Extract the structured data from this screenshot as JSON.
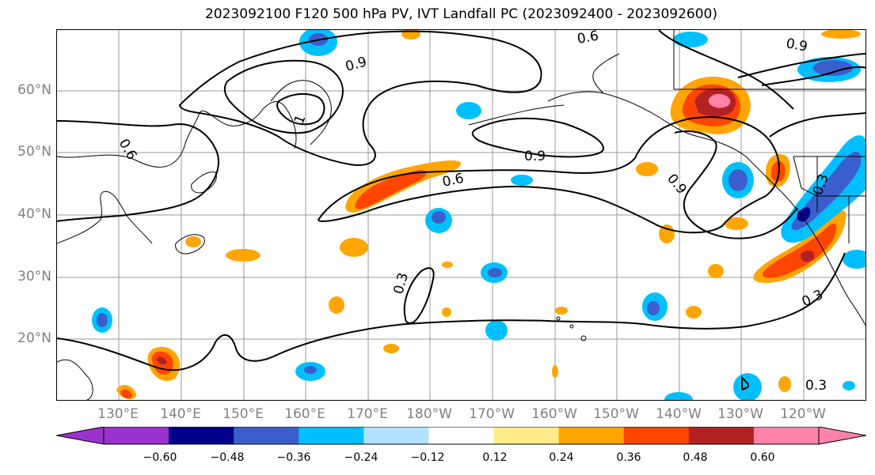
{
  "title": "2023092100 F120 500 hPa PV, IVT Landfall PC (2023092400 - 2023092600)",
  "lat_labels": [
    "60°N",
    "50°N",
    "40°N",
    "30°N",
    "20°N"
  ],
  "lon_labels": [
    "130°E",
    "140°E",
    "150°E",
    "160°E",
    "170°E",
    "180°W",
    "170°W",
    "160°W",
    "150°W",
    "140°W",
    "130°W",
    "120°W"
  ],
  "contour_labels": [
    "0.6",
    "0.9",
    "0.9",
    "0.6",
    "0.9",
    "0.6",
    "0.9",
    "0.3",
    "0.3",
    "0.3",
    "1",
    "0.3"
  ],
  "colorbar": {
    "tick_labels": [
      "−0.60",
      "−0.48",
      "−0.36",
      "−0.24",
      "−0.12",
      "0.12",
      "0.24",
      "0.36",
      "0.48",
      "0.60"
    ],
    "colors": [
      "#9a32cd",
      "#00008b",
      "#3a5fcd",
      "#00bfff",
      "#b0e2ff",
      "#ffffff",
      "#ffec8b",
      "#ffa500",
      "#ff4500",
      "#b22222",
      "#ff82ab",
      "#ff82ab"
    ],
    "under_color": "#9a32cd",
    "over_color": "#ff82ab"
  },
  "chart_data": {
    "type": "map-contour",
    "title": "2023092100 F120 500 hPa PV, IVT Landfall PC (2023092400 - 2023092600)",
    "region": "North Pacific",
    "lon_range": [
      "120°E",
      "113°W"
    ],
    "lat_range": [
      10,
      70
    ],
    "grid": true,
    "contour_levels": [
      0.3,
      0.6,
      0.9,
      1.2
    ],
    "fill_levels": [
      -0.6,
      -0.48,
      -0.36,
      -0.24,
      -0.12,
      0.12,
      0.24,
      0.36,
      0.48,
      0.6
    ]
  }
}
